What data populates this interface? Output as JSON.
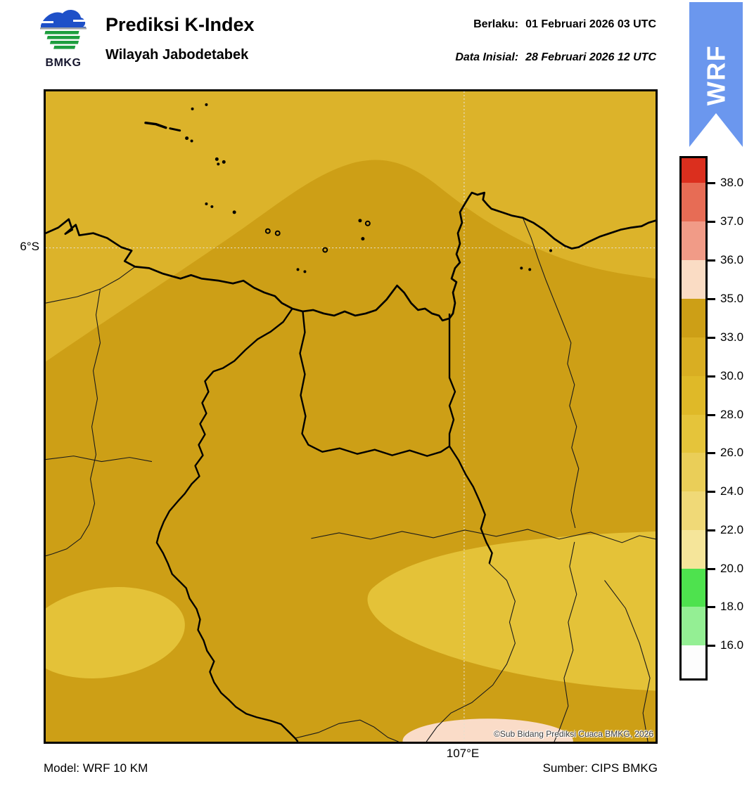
{
  "header": {
    "title": "Prediksi K-Index",
    "subtitle": "Wilayah Jabodetabek",
    "logo_text": "BMKG",
    "valid_label": "Berlaku:",
    "valid_value": "01 Februari 2026 03 UTC",
    "initial_label": "Data Inisial:",
    "initial_value": "28 Februari 2026 12 UTC",
    "ribbon_label": "WRF"
  },
  "map": {
    "lat_tick": "6°S",
    "lon_tick": "107°E",
    "copyright": "©Sub Bidang Prediksi Cuaca BMKG, 2026"
  },
  "footer": {
    "model": "Model: WRF 10 KM",
    "source": "Sumber: CIPS BMKG"
  },
  "colors": {
    "ribbon_blue": "#6b97ee",
    "k30_33": "#dcb32a",
    "k33_35": "#cd9f16",
    "k28_30": "#e4c238",
    "k35_36": "#fadcc8",
    "coast_black": "#000000",
    "grid_dot": "#e6e0d0"
  },
  "legend": {
    "ticks": [
      "38.0",
      "37.0",
      "36.0",
      "35.0",
      "33.0",
      "30.0",
      "28.0",
      "26.0",
      "24.0",
      "22.0",
      "20.0",
      "18.0",
      "16.0"
    ],
    "segment_colors": [
      "#db2f1e",
      "#e76c55",
      "#f19b87",
      "#fadcc4",
      "#cd9f16",
      "#d9ae22",
      "#dfb928",
      "#e5c43a",
      "#eace58",
      "#f0d977",
      "#f5e59a",
      "#4ee24e",
      "#94ef94",
      "#fdfdfd"
    ]
  }
}
